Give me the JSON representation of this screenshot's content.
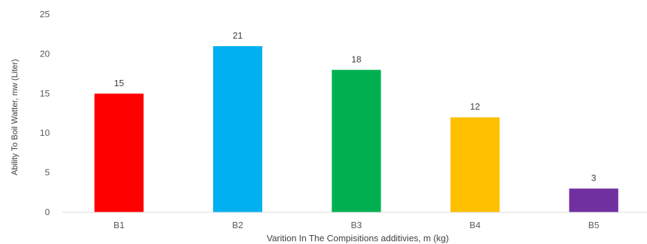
{
  "chart_data": {
    "type": "bar",
    "title": "",
    "xlabel": "Varition In The Compisitions additivies, m (kg)",
    "ylabel": "Ability To Boil Watter, mw (Liter)",
    "categories": [
      "B1",
      "B2",
      "B3",
      "B4",
      "B5"
    ],
    "values": [
      15,
      21,
      18,
      12,
      3
    ],
    "colors": [
      "#ff0000",
      "#00b0f0",
      "#00b050",
      "#ffc000",
      "#7030a0"
    ],
    "ylim": [
      0,
      25
    ],
    "yticks": [
      0,
      5,
      10,
      15,
      20,
      25
    ],
    "grid": false,
    "legend": "none",
    "data_labels": true
  }
}
